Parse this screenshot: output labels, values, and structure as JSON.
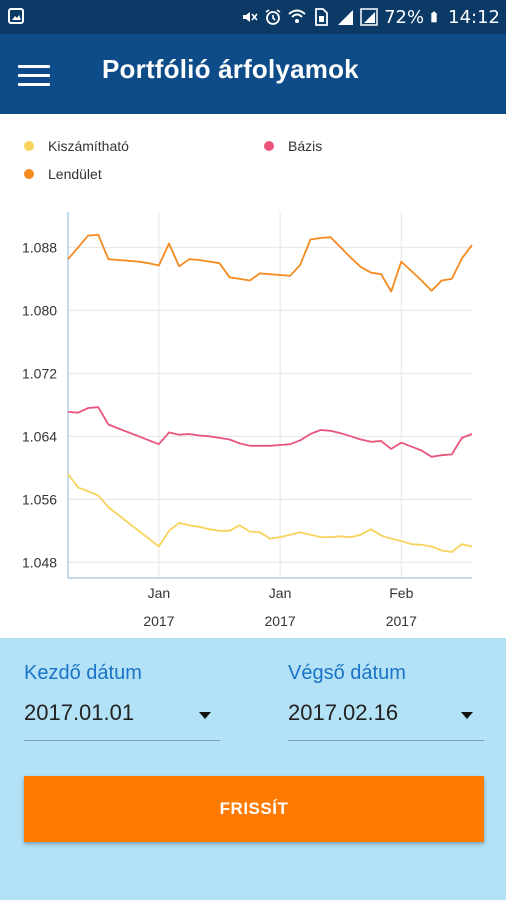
{
  "status_bar": {
    "battery": "72%",
    "time": "14:12",
    "icons": [
      "image-icon",
      "mute-icon",
      "alarm-icon",
      "wifi-icon",
      "sim-icon",
      "signal-icon",
      "signal-icon-2",
      "battery-icon"
    ]
  },
  "app_bar": {
    "title": "Portfólió árfolyamok",
    "menu_icon": "hamburger-menu-icon"
  },
  "colors": {
    "status_bar": "#0b3a66",
    "app_bar": "#0d4c88",
    "accent_orange": "#ff7a00",
    "panel_blue": "#b3e2f7",
    "label_blue": "#1a73c7"
  },
  "legend": [
    {
      "name": "Kiszámítható",
      "color": "#f7d35b"
    },
    {
      "name": "Bázis",
      "color": "#e9557c"
    },
    {
      "name": "Lendület",
      "color": "#f58a1f"
    }
  ],
  "chart_data": {
    "type": "line",
    "ylim": [
      1.046,
      1.0925
    ],
    "yticks": [
      "1.048",
      "1.056",
      "1.064",
      "1.072",
      "1.080",
      "1.088"
    ],
    "yticks_values": [
      1.048,
      1.056,
      1.064,
      1.072,
      1.08,
      1.088
    ],
    "xticks": [
      {
        "index": 9,
        "line1": "Jan",
        "line2": "2017"
      },
      {
        "index": 21,
        "line1": "Jan",
        "line2": "2017"
      },
      {
        "index": 33,
        "line1": "Feb",
        "line2": "2017"
      }
    ],
    "x": [
      0,
      1,
      2,
      3,
      4,
      5,
      6,
      7,
      8,
      9,
      10,
      11,
      12,
      13,
      14,
      15,
      16,
      17,
      18,
      19,
      20,
      21,
      22,
      23,
      24,
      25,
      26,
      27,
      28,
      29,
      30,
      31,
      32,
      33,
      34,
      35,
      36,
      37,
      38,
      39,
      40
    ],
    "series": [
      {
        "name": "Lendület",
        "color": "#f58a1f",
        "values": [
          1.0865,
          1.088,
          1.0895,
          1.0896,
          1.0865,
          1.0864,
          1.0863,
          1.0862,
          1.086,
          1.0857,
          1.0885,
          1.0856,
          1.0865,
          1.0864,
          1.0862,
          1.086,
          1.0842,
          1.084,
          1.0838,
          1.0847,
          1.0846,
          1.0845,
          1.0844,
          1.0858,
          1.089,
          1.0892,
          1.0893,
          1.088,
          1.0867,
          1.0855,
          1.0848,
          1.0846,
          1.0824,
          1.0862,
          1.085,
          1.0838,
          1.0825,
          1.0838,
          1.084,
          1.0866,
          1.0883
        ]
      },
      {
        "name": "Bázis",
        "color": "#e9557c",
        "values": [
          1.0671,
          1.067,
          1.0676,
          1.0677,
          1.0655,
          1.065,
          1.0645,
          1.064,
          1.0635,
          1.063,
          1.0645,
          1.0642,
          1.0643,
          1.0641,
          1.064,
          1.0638,
          1.0636,
          1.0631,
          1.0628,
          1.0628,
          1.0628,
          1.0629,
          1.063,
          1.0635,
          1.0643,
          1.0648,
          1.0647,
          1.0644,
          1.064,
          1.0636,
          1.0633,
          1.0634,
          1.0624,
          1.0632,
          1.0627,
          1.0622,
          1.0614,
          1.0616,
          1.0617,
          1.0638,
          1.0643
        ]
      },
      {
        "name": "Kiszámítható",
        "color": "#f7d35b",
        "values": [
          1.0592,
          1.0575,
          1.057,
          1.0565,
          1.055,
          1.054,
          1.053,
          1.052,
          1.051,
          1.05,
          1.052,
          1.053,
          1.0527,
          1.0525,
          1.0522,
          1.052,
          1.052,
          1.0527,
          1.0519,
          1.0518,
          1.051,
          1.0512,
          1.0515,
          1.0518,
          1.0515,
          1.0512,
          1.0512,
          1.0513,
          1.0512,
          1.0515,
          1.0522,
          1.0514,
          1.051,
          1.0507,
          1.0503,
          1.0502,
          1.05,
          1.0495,
          1.0493,
          1.0503,
          1.05
        ]
      }
    ]
  },
  "form": {
    "start_label": "Kezdő dátum",
    "start_value": "2017.01.01",
    "end_label": "Végső dátum",
    "end_value": "2017.02.16",
    "refresh_label": "FRISSÍT"
  }
}
